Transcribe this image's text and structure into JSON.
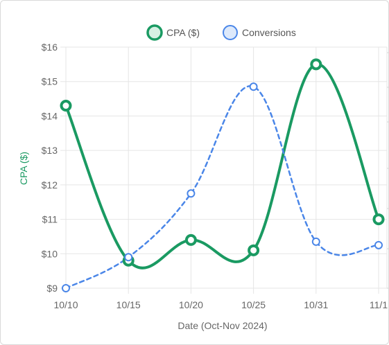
{
  "chart_data": {
    "type": "line",
    "categories": [
      "10/10",
      "10/15",
      "10/20",
      "10/25",
      "10/31",
      "11/1"
    ],
    "xlabel": "Date (Oct-Nov 2024)",
    "ylabel": "CPA ($)",
    "ylim": [
      9,
      16
    ],
    "y_ticks": [
      "$9",
      "$10",
      "$11",
      "$12",
      "$13",
      "$14",
      "$15",
      "$16"
    ],
    "grid": true,
    "legend_position": "top-center",
    "series": [
      {
        "name": "CPA ($)",
        "values": [
          14.3,
          9.8,
          10.4,
          10.1,
          15.5,
          11.0
        ],
        "color": "#1a9a62",
        "style": "solid",
        "axis": "left"
      },
      {
        "name": "Conversions",
        "values_on_left_scale": [
          9.0,
          9.9,
          11.75,
          14.85,
          10.35,
          10.25
        ],
        "color": "#4a86e8",
        "style": "dashed",
        "axis": "right"
      }
    ]
  }
}
